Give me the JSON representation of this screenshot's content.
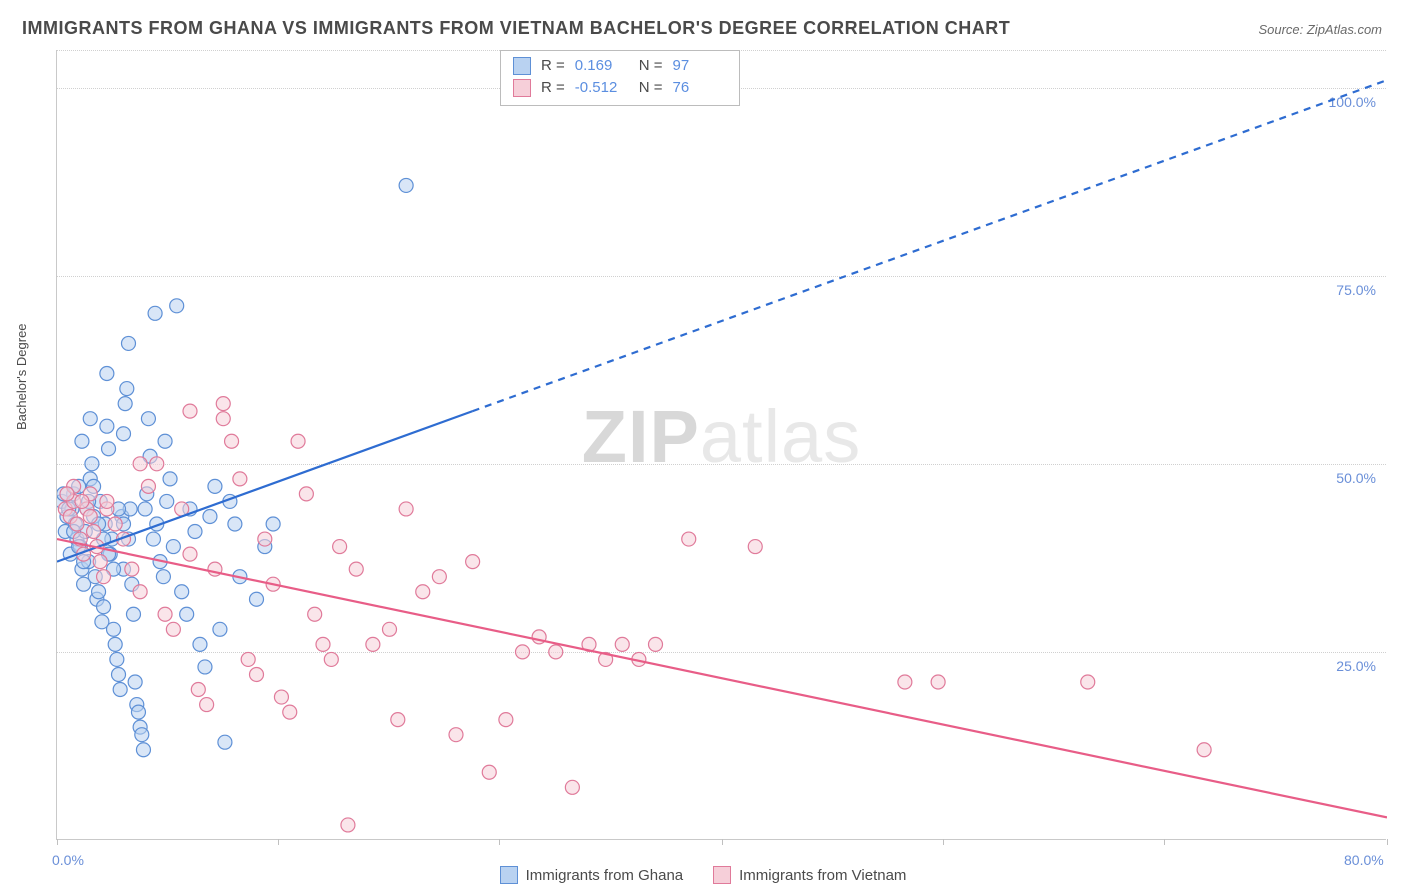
{
  "title": "IMMIGRANTS FROM GHANA VS IMMIGRANTS FROM VIETNAM BACHELOR'S DEGREE CORRELATION CHART",
  "source_label": "Source: ZipAtlas.com",
  "yaxis_label": "Bachelor's Degree",
  "watermark_bold": "ZIP",
  "watermark_rest": "atlas",
  "chart": {
    "type": "scatter-with-regression",
    "xlim": [
      0,
      80
    ],
    "ylim": [
      0,
      105
    ],
    "y_ticks": [
      25,
      50,
      75,
      100
    ],
    "y_tick_labels": [
      "25.0%",
      "50.0%",
      "75.0%",
      "100.0%"
    ],
    "x_tick_positions": [
      0,
      13.3,
      26.6,
      40,
      53.3,
      66.6,
      80
    ],
    "x_origin_label": "0.0%",
    "x_max_label": "80.0%",
    "grid_color": "#d0d0d0",
    "background_color": "#ffffff",
    "marker_radius": 7,
    "marker_stroke_width": 1.2,
    "line_width": 2.2,
    "series": [
      {
        "id": "ghana",
        "label": "Immigrants from Ghana",
        "fill": "#b9d2f1",
        "stroke": "#5e90d6",
        "line_color": "#2e6cd1",
        "R": "0.169",
        "N": "97",
        "regression": {
          "x1": 0,
          "y1": 37,
          "x2": 80,
          "y2": 101,
          "dash_after_x": 25
        },
        "points": [
          [
            0.3,
            45
          ],
          [
            0.5,
            41
          ],
          [
            0.6,
            43
          ],
          [
            0.8,
            38
          ],
          [
            0.9,
            44
          ],
          [
            1.0,
            46
          ],
          [
            1.1,
            42
          ],
          [
            1.2,
            40
          ],
          [
            1.3,
            47
          ],
          [
            1.4,
            39
          ],
          [
            1.5,
            36
          ],
          [
            1.6,
            34
          ],
          [
            1.7,
            41
          ],
          [
            1.8,
            44
          ],
          [
            1.9,
            37
          ],
          [
            2.0,
            48
          ],
          [
            2.1,
            50
          ],
          [
            2.2,
            43
          ],
          [
            2.3,
            35
          ],
          [
            2.4,
            32
          ],
          [
            2.5,
            33
          ],
          [
            2.6,
            45
          ],
          [
            2.7,
            29
          ],
          [
            2.8,
            31
          ],
          [
            2.9,
            42
          ],
          [
            3.0,
            55
          ],
          [
            3.1,
            52
          ],
          [
            3.2,
            38
          ],
          [
            3.3,
            40
          ],
          [
            3.4,
            28
          ],
          [
            3.5,
            26
          ],
          [
            3.6,
            24
          ],
          [
            3.7,
            22
          ],
          [
            3.8,
            20
          ],
          [
            3.9,
            43
          ],
          [
            4.0,
            36
          ],
          [
            4.1,
            58
          ],
          [
            4.2,
            60
          ],
          [
            4.3,
            66
          ],
          [
            4.4,
            44
          ],
          [
            4.5,
            34
          ],
          [
            4.6,
            30
          ],
          [
            4.7,
            21
          ],
          [
            4.8,
            18
          ],
          [
            4.9,
            17
          ],
          [
            5.0,
            15
          ],
          [
            5.1,
            14
          ],
          [
            5.2,
            12
          ],
          [
            5.3,
            44
          ],
          [
            5.4,
            46
          ],
          [
            5.5,
            56
          ],
          [
            5.6,
            51
          ],
          [
            5.8,
            40
          ],
          [
            6.0,
            42
          ],
          [
            6.2,
            37
          ],
          [
            6.4,
            35
          ],
          [
            6.6,
            45
          ],
          [
            6.8,
            48
          ],
          [
            7.0,
            39
          ],
          [
            7.2,
            71
          ],
          [
            7.5,
            33
          ],
          [
            7.8,
            30
          ],
          [
            8.0,
            44
          ],
          [
            8.3,
            41
          ],
          [
            8.6,
            26
          ],
          [
            8.9,
            23
          ],
          [
            9.2,
            43
          ],
          [
            9.5,
            47
          ],
          [
            9.8,
            28
          ],
          [
            10.1,
            13
          ],
          [
            10.4,
            45
          ],
          [
            10.7,
            42
          ],
          [
            5.9,
            70
          ],
          [
            3.0,
            62
          ],
          [
            2.0,
            56
          ],
          [
            1.5,
            53
          ],
          [
            6.5,
            53
          ],
          [
            4.0,
            54
          ],
          [
            11.0,
            35
          ],
          [
            12.0,
            32
          ],
          [
            12.5,
            39
          ],
          [
            13.0,
            42
          ],
          [
            0.4,
            46
          ],
          [
            0.7,
            44
          ],
          [
            1.0,
            41
          ],
          [
            1.3,
            39
          ],
          [
            1.6,
            37
          ],
          [
            1.9,
            45
          ],
          [
            2.2,
            47
          ],
          [
            2.5,
            42
          ],
          [
            2.8,
            40
          ],
          [
            3.1,
            38
          ],
          [
            3.4,
            36
          ],
          [
            3.7,
            44
          ],
          [
            4.0,
            42
          ],
          [
            4.3,
            40
          ],
          [
            21.0,
            87
          ]
        ]
      },
      {
        "id": "vietnam",
        "label": "Immigrants from Vietnam",
        "fill": "#f6cfd9",
        "stroke": "#e07a9a",
        "line_color": "#e85d87",
        "R": "-0.512",
        "N": "76",
        "regression": {
          "x1": 0,
          "y1": 40,
          "x2": 80,
          "y2": 3,
          "dash_after_x": 999
        },
        "points": [
          [
            0.5,
            44
          ],
          [
            0.8,
            43
          ],
          [
            1.0,
            45
          ],
          [
            1.2,
            42
          ],
          [
            1.4,
            40
          ],
          [
            1.6,
            38
          ],
          [
            1.8,
            44
          ],
          [
            2.0,
            43
          ],
          [
            2.2,
            41
          ],
          [
            2.4,
            39
          ],
          [
            2.6,
            37
          ],
          [
            2.8,
            35
          ],
          [
            3.0,
            44
          ],
          [
            3.5,
            42
          ],
          [
            4.0,
            40
          ],
          [
            4.5,
            36
          ],
          [
            5.0,
            33
          ],
          [
            5.5,
            47
          ],
          [
            6.0,
            50
          ],
          [
            6.5,
            30
          ],
          [
            7.0,
            28
          ],
          [
            7.5,
            44
          ],
          [
            8.0,
            38
          ],
          [
            8.5,
            20
          ],
          [
            9.0,
            18
          ],
          [
            9.5,
            36
          ],
          [
            10.0,
            56
          ],
          [
            10.5,
            53
          ],
          [
            11.0,
            48
          ],
          [
            11.5,
            24
          ],
          [
            12.0,
            22
          ],
          [
            12.5,
            40
          ],
          [
            13.0,
            34
          ],
          [
            13.5,
            19
          ],
          [
            14.0,
            17
          ],
          [
            14.5,
            53
          ],
          [
            15.0,
            46
          ],
          [
            15.5,
            30
          ],
          [
            16.0,
            26
          ],
          [
            16.5,
            24
          ],
          [
            17.0,
            39
          ],
          [
            17.5,
            2
          ],
          [
            18.0,
            36
          ],
          [
            19.0,
            26
          ],
          [
            20.0,
            28
          ],
          [
            20.5,
            16
          ],
          [
            21.0,
            44
          ],
          [
            22.0,
            33
          ],
          [
            23.0,
            35
          ],
          [
            24.0,
            14
          ],
          [
            25.0,
            37
          ],
          [
            26.0,
            9
          ],
          [
            27.0,
            16
          ],
          [
            28.0,
            25
          ],
          [
            29.0,
            27
          ],
          [
            30.0,
            25
          ],
          [
            31.0,
            7
          ],
          [
            32.0,
            26
          ],
          [
            33.0,
            24
          ],
          [
            34.0,
            26
          ],
          [
            35.0,
            24
          ],
          [
            36.0,
            26
          ],
          [
            38.0,
            40
          ],
          [
            42.0,
            39
          ],
          [
            51.0,
            21
          ],
          [
            53.0,
            21
          ],
          [
            62.0,
            21
          ],
          [
            69.0,
            12
          ],
          [
            8.0,
            57
          ],
          [
            10.0,
            58
          ],
          [
            5.0,
            50
          ],
          [
            3.0,
            45
          ],
          [
            2.0,
            46
          ],
          [
            1.0,
            47
          ],
          [
            0.6,
            46
          ],
          [
            1.5,
            45
          ]
        ]
      }
    ]
  },
  "stats_box": {
    "R_label": "R =",
    "N_label": "N ="
  }
}
